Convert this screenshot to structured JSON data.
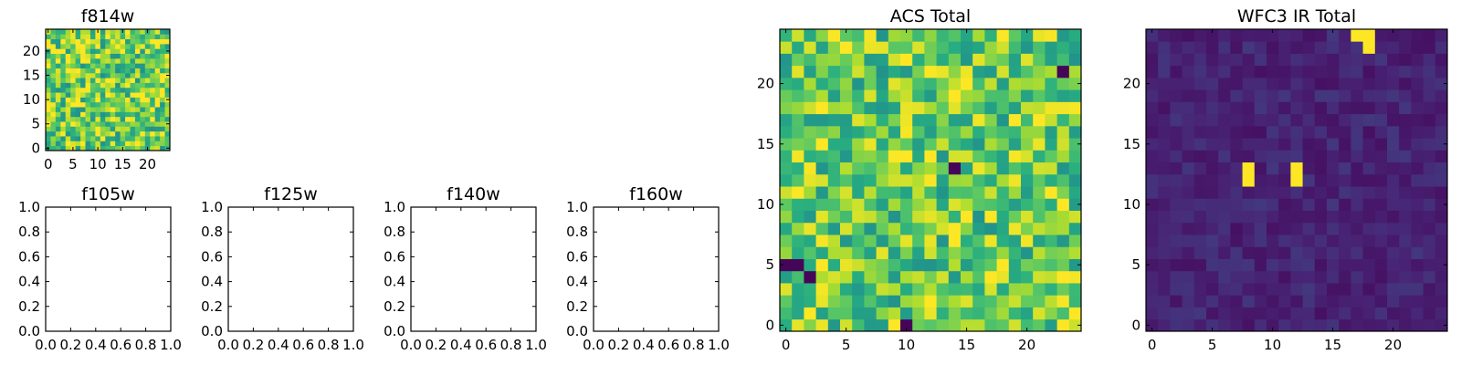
{
  "chart_data": [
    {
      "type": "heatmap",
      "title": "f814w",
      "nx": 25,
      "ny": 25,
      "xlim": [
        -0.5,
        24.5
      ],
      "ylim": [
        -0.5,
        24.5
      ],
      "xticks": [
        0,
        5,
        10,
        15,
        20
      ],
      "yticks": [
        0,
        5,
        10,
        15,
        20
      ],
      "colormap": "viridis",
      "value_range": [
        0,
        1
      ],
      "seed": 11,
      "base": 0.78,
      "spread": 0.55,
      "hot": [],
      "cold": []
    },
    {
      "type": "empty",
      "title": "f105w",
      "xlim": [
        0,
        1
      ],
      "ylim": [
        0,
        1
      ],
      "xticks": [
        0.0,
        0.2,
        0.4,
        0.6,
        0.8,
        1.0
      ],
      "yticks": [
        0.0,
        0.2,
        0.4,
        0.6,
        0.8,
        1.0
      ],
      "xtick_labels": [
        "0.0",
        "0.2",
        "0.4",
        "0.6",
        "0.8",
        "1.0"
      ],
      "ytick_labels": [
        "0.0",
        "0.2",
        "0.4",
        "0.6",
        "0.8",
        "1.0"
      ]
    },
    {
      "type": "empty",
      "title": "f125w",
      "xlim": [
        0,
        1
      ],
      "ylim": [
        0,
        1
      ],
      "xticks": [
        0.0,
        0.2,
        0.4,
        0.6,
        0.8,
        1.0
      ],
      "yticks": [
        0.0,
        0.2,
        0.4,
        0.6,
        0.8,
        1.0
      ],
      "xtick_labels": [
        "0.0",
        "0.2",
        "0.4",
        "0.6",
        "0.8",
        "1.0"
      ],
      "ytick_labels": [
        "0.0",
        "0.2",
        "0.4",
        "0.6",
        "0.8",
        "1.0"
      ]
    },
    {
      "type": "empty",
      "title": "f140w",
      "xlim": [
        0,
        1
      ],
      "ylim": [
        0,
        1
      ],
      "xticks": [
        0.0,
        0.2,
        0.4,
        0.6,
        0.8,
        1.0
      ],
      "yticks": [
        0.0,
        0.2,
        0.4,
        0.6,
        0.8,
        1.0
      ],
      "xtick_labels": [
        "0.0",
        "0.2",
        "0.4",
        "0.6",
        "0.8",
        "1.0"
      ],
      "ytick_labels": [
        "0.0",
        "0.2",
        "0.4",
        "0.6",
        "0.8",
        "1.0"
      ]
    },
    {
      "type": "empty",
      "title": "f160w",
      "xlim": [
        0,
        1
      ],
      "ylim": [
        0,
        1
      ],
      "xticks": [
        0.0,
        0.2,
        0.4,
        0.6,
        0.8,
        1.0
      ],
      "yticks": [
        0.0,
        0.2,
        0.4,
        0.6,
        0.8,
        1.0
      ],
      "xtick_labels": [
        "0.0",
        "0.2",
        "0.4",
        "0.6",
        "0.8",
        "1.0"
      ],
      "ytick_labels": [
        "0.0",
        "0.2",
        "0.4",
        "0.6",
        "0.8",
        "1.0"
      ]
    },
    {
      "type": "heatmap",
      "title": "ACS Total",
      "nx": 25,
      "ny": 25,
      "xlim": [
        -0.5,
        24.5
      ],
      "ylim": [
        -0.5,
        24.5
      ],
      "xticks": [
        0,
        5,
        10,
        15,
        20
      ],
      "yticks": [
        0,
        5,
        10,
        15,
        20
      ],
      "colormap": "viridis",
      "value_range": [
        0,
        1
      ],
      "seed": 7,
      "base": 0.76,
      "spread": 0.5,
      "hot": [
        [
          10,
          14
        ],
        [
          12,
          14
        ],
        [
          21,
          17
        ],
        [
          22,
          11
        ],
        [
          23,
          10
        ],
        [
          12,
          2
        ],
        [
          3,
          18
        ],
        [
          23,
          0
        ]
      ],
      "cold": [
        [
          0,
          5
        ],
        [
          1,
          5
        ],
        [
          14,
          13
        ],
        [
          10,
          0
        ],
        [
          2,
          4
        ],
        [
          23,
          21
        ]
      ]
    },
    {
      "type": "heatmap",
      "title": "WFC3 IR Total",
      "nx": 25,
      "ny": 25,
      "xlim": [
        -0.5,
        24.5
      ],
      "ylim": [
        -0.5,
        24.5
      ],
      "xticks": [
        0,
        5,
        10,
        15,
        20
      ],
      "yticks": [
        0,
        5,
        10,
        15,
        20
      ],
      "colormap": "viridis",
      "value_range": [
        0,
        1
      ],
      "seed": 3,
      "base": 0.12,
      "spread": 0.12,
      "hot": [
        [
          18,
          24
        ],
        [
          18,
          23
        ],
        [
          8,
          13
        ],
        [
          8,
          12
        ],
        [
          12,
          13
        ],
        [
          12,
          12
        ],
        [
          17,
          24
        ]
      ],
      "cold": []
    }
  ]
}
